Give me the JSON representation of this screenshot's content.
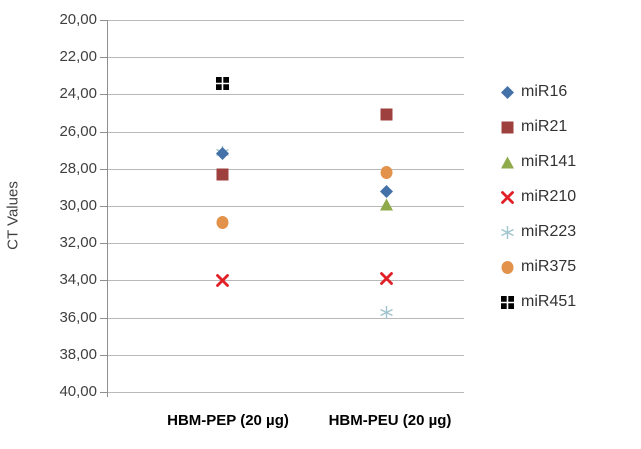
{
  "chart_data": {
    "type": "scatter",
    "title": "",
    "xlabel": "",
    "ylabel": "CT Values",
    "categories": [
      "HBM-PEP (20 µg)",
      "HBM-PEU (20 µg)"
    ],
    "y_axis": {
      "min": 20,
      "max": 40,
      "step": 2,
      "inverted": true,
      "tick_labels": [
        "20,00",
        "22,00",
        "24,00",
        "26,00",
        "28,00",
        "30,00",
        "32,00",
        "34,00",
        "36,00",
        "38,00",
        "40,00"
      ]
    },
    "grid": true,
    "legend_position": "right",
    "series": [
      {
        "name": "miR16",
        "marker": "diamond",
        "color": "#4472a8",
        "values": [
          27.2,
          29.2
        ]
      },
      {
        "name": "miR21",
        "marker": "square",
        "color": "#9e413e",
        "values": [
          28.3,
          25.1
        ]
      },
      {
        "name": "miR141",
        "marker": "triangle",
        "color": "#8faa4b",
        "values": [
          null,
          29.9
        ]
      },
      {
        "name": "miR210",
        "marker": "x",
        "color": "#e01f26",
        "values": [
          34.0,
          33.9
        ]
      },
      {
        "name": "miR223",
        "marker": "asterisk",
        "color": "#9fc4cd",
        "values": [
          27.1,
          35.7
        ]
      },
      {
        "name": "miR375",
        "marker": "circle",
        "color": "#e2924a",
        "values": [
          30.9,
          28.2
        ]
      },
      {
        "name": "miR451",
        "marker": "grid-square",
        "color": "#000000",
        "values": [
          23.4,
          null
        ]
      }
    ]
  }
}
